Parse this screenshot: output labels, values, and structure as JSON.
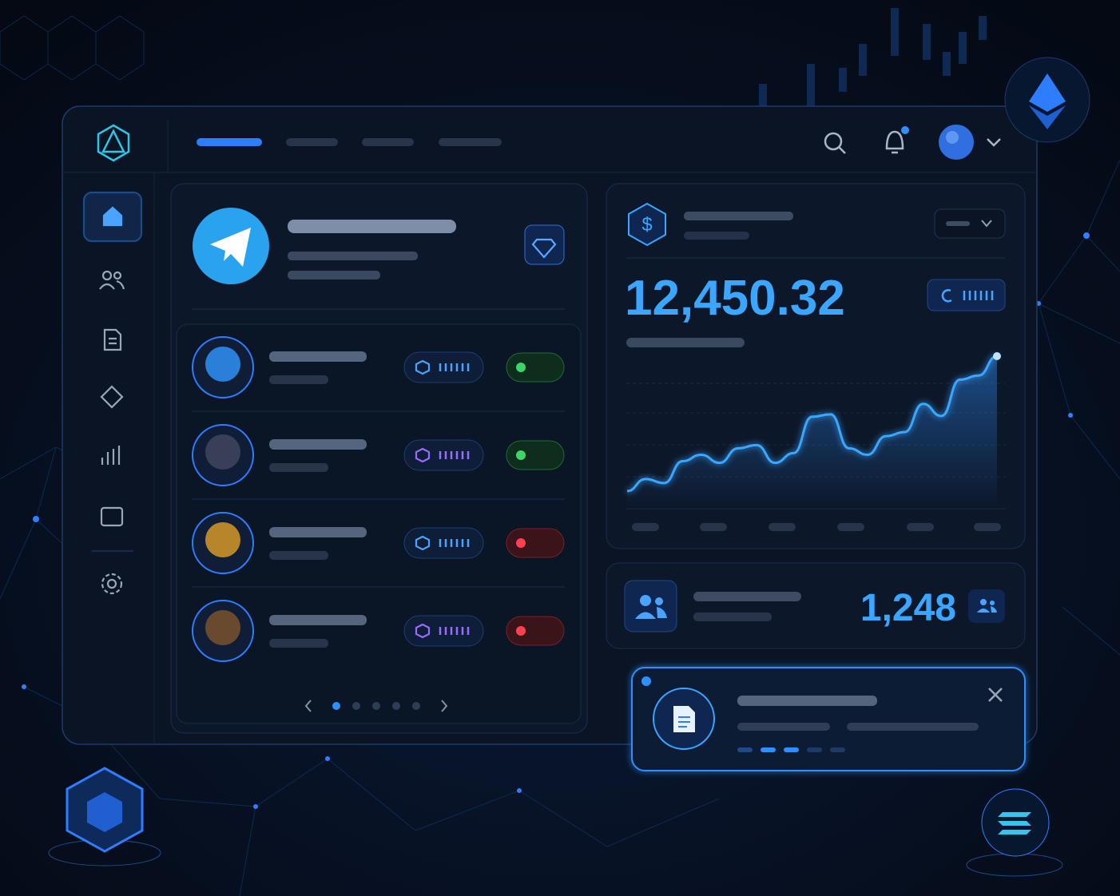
{
  "balance": {
    "amount": "12,450.32",
    "sparkline": [
      25,
      40,
      35,
      62,
      70,
      60,
      78,
      82,
      60,
      72,
      117,
      120,
      78,
      70,
      93,
      98,
      133,
      118,
      163,
      168,
      192
    ]
  },
  "members": {
    "count": "1,248"
  }
}
